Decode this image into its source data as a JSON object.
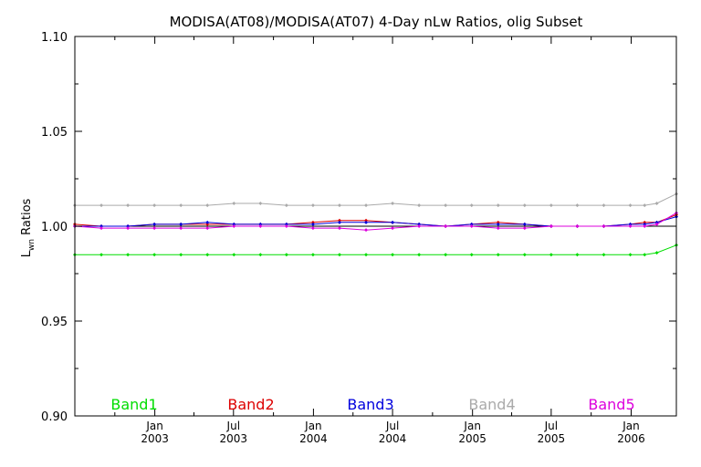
{
  "chart_data": {
    "type": "line",
    "title": "MODISA(AT08)/MODISA(AT07) 4-Day nLw Ratios, olig Subset",
    "ylabel": {
      "main": "L",
      "sub": "wn",
      "rest": " Ratios"
    },
    "xlabel": "",
    "ylim": [
      0.9,
      1.1
    ],
    "yticks": [
      "0.90",
      "0.95",
      "1.00",
      "1.05",
      "1.10"
    ],
    "xlim": [
      "2002-07-01",
      "2006-04-15"
    ],
    "xticks": [
      {
        "date": "2003-01-01",
        "line1": "Jan",
        "line2": "2003"
      },
      {
        "date": "2003-07-01",
        "line1": "Jul",
        "line2": "2003"
      },
      {
        "date": "2004-01-01",
        "line1": "Jan",
        "line2": "2004"
      },
      {
        "date": "2004-07-01",
        "line1": "Jul",
        "line2": "2004"
      },
      {
        "date": "2005-01-01",
        "line1": "Jan",
        "line2": "2005"
      },
      {
        "date": "2005-07-01",
        "line1": "Jul",
        "line2": "2005"
      },
      {
        "date": "2006-01-01",
        "line1": "Jan",
        "line2": "2006"
      }
    ],
    "minor_ticks": [
      "2002-10-01",
      "2003-04-01",
      "2003-10-01",
      "2004-04-01",
      "2004-10-01",
      "2005-04-01",
      "2005-10-01"
    ],
    "reference_line": 1.0,
    "x": [
      "2002-07-01",
      "2002-08-31",
      "2002-10-31",
      "2002-12-31",
      "2003-03-02",
      "2003-05-02",
      "2003-07-02",
      "2003-09-01",
      "2003-10-31",
      "2003-12-31",
      "2004-03-01",
      "2004-05-01",
      "2004-07-01",
      "2004-08-31",
      "2004-10-31",
      "2004-12-30",
      "2005-03-01",
      "2005-05-01",
      "2005-07-01",
      "2005-08-30",
      "2005-10-30",
      "2005-12-30",
      "2006-02-01",
      "2006-03-01",
      "2006-04-15"
    ],
    "series": [
      {
        "name": "Band1",
        "color": "#00dd00",
        "values": [
          0.985,
          0.985,
          0.985,
          0.985,
          0.985,
          0.985,
          0.985,
          0.985,
          0.985,
          0.985,
          0.985,
          0.985,
          0.985,
          0.985,
          0.985,
          0.985,
          0.985,
          0.985,
          0.985,
          0.985,
          0.985,
          0.985,
          0.985,
          0.986,
          0.99
        ]
      },
      {
        "name": "Band2",
        "color": "#dd0000",
        "values": [
          1.001,
          1.0,
          1.0,
          1.001,
          1.001,
          1.001,
          1.001,
          1.001,
          1.001,
          1.002,
          1.003,
          1.003,
          1.002,
          1.001,
          1.0,
          1.001,
          1.002,
          1.001,
          1.0,
          1.0,
          1.0,
          1.001,
          1.002,
          1.002,
          1.006
        ]
      },
      {
        "name": "Band3",
        "color": "#0000dd",
        "values": [
          1.0,
          1.0,
          1.0,
          1.001,
          1.001,
          1.002,
          1.001,
          1.001,
          1.001,
          1.001,
          1.002,
          1.002,
          1.002,
          1.001,
          1.0,
          1.001,
          1.001,
          1.001,
          1.0,
          1.0,
          1.0,
          1.001,
          1.001,
          1.002,
          1.005
        ]
      },
      {
        "name": "Band4",
        "color": "#aaaaaa",
        "values": [
          1.011,
          1.011,
          1.011,
          1.011,
          1.011,
          1.011,
          1.012,
          1.012,
          1.011,
          1.011,
          1.011,
          1.011,
          1.012,
          1.011,
          1.011,
          1.011,
          1.011,
          1.011,
          1.011,
          1.011,
          1.011,
          1.011,
          1.011,
          1.012,
          1.017
        ]
      },
      {
        "name": "Band5",
        "color": "#dd00dd",
        "values": [
          1.0,
          0.999,
          0.999,
          0.999,
          0.999,
          0.999,
          1.0,
          1.0,
          1.0,
          0.999,
          0.999,
          0.998,
          0.999,
          1.0,
          1.0,
          1.0,
          0.999,
          0.999,
          1.0,
          1.0,
          1.0,
          1.0,
          1.0,
          1.001,
          1.007
        ]
      }
    ],
    "legend_position": "bottom"
  }
}
